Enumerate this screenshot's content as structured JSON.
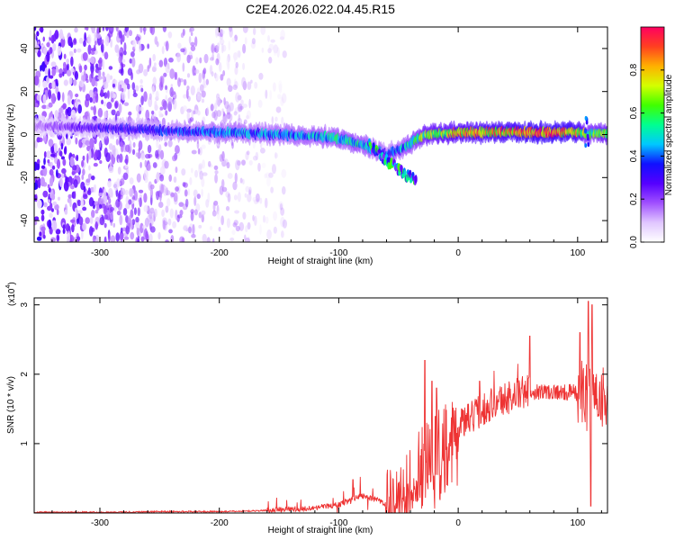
{
  "chart_data": [
    {
      "type": "heatmap",
      "title": "C2E4.2026.022.04.45.R15",
      "xlabel": "Height of straight line (km)",
      "ylabel": "Frequency (Hz)",
      "xlim": [
        -355,
        125
      ],
      "ylim": [
        -50,
        50
      ],
      "x_ticks": [
        -300,
        -200,
        -100,
        0,
        100
      ],
      "x_tick_labels": [
        "-300",
        "-200",
        "-100",
        "0",
        "100"
      ],
      "y_ticks": [
        -40,
        -20,
        0,
        20,
        40
      ],
      "y_tick_labels": [
        "-40",
        "-20",
        "0",
        "20",
        "40"
      ],
      "colorbar": {
        "label": "Normalized spectral amplitude",
        "range": [
          0,
          1
        ],
        "ticks": [
          0.0,
          0.2,
          0.4,
          0.6,
          0.8
        ],
        "tick_labels": [
          "0.0",
          "0.2",
          "0.4",
          "0.6",
          "0.8"
        ],
        "colormap": [
          "#ffffff",
          "#e0c6ff",
          "#a050ff",
          "#5500ff",
          "#1010ff",
          "#00c8ff",
          "#00ff90",
          "#40ff00",
          "#d4ff00",
          "#ffb000",
          "#ff4020",
          "#ff0060"
        ]
      },
      "ridge": {
        "x": [
          -355,
          -300,
          -250,
          -200,
          -150,
          -110,
          -90,
          -75,
          -60,
          -45,
          -35,
          -25,
          0,
          40,
          80,
          100,
          108,
          125
        ],
        "freq": [
          4,
          3,
          2,
          1,
          0,
          -1,
          -3,
          -6,
          -9,
          -6,
          -2,
          0,
          1,
          1,
          1,
          1,
          0,
          1
        ],
        "amplitude": [
          0.15,
          0.3,
          0.35,
          0.45,
          0.45,
          0.5,
          0.55,
          0.5,
          0.4,
          0.5,
          0.6,
          0.7,
          0.8,
          0.85,
          0.9,
          0.85,
          0.6,
          0.7
        ],
        "branch": {
          "x": [
            -75,
            -60,
            -45,
            -35
          ],
          "freq": [
            -5,
            -12,
            -18,
            -22
          ]
        }
      },
      "noise_region_x": [
        -355,
        -145
      ]
    },
    {
      "type": "line",
      "xlabel": "Height of straight line (km)",
      "ylabel": "SNR (10 * v/v)",
      "y_multiplier": "(x10",
      "y_multiplier_exp": "4",
      "y_multiplier_close": ")",
      "xlim": [
        -355,
        125
      ],
      "ylim": [
        0,
        3.1
      ],
      "x_ticks": [
        -300,
        -200,
        -100,
        0,
        100
      ],
      "x_tick_labels": [
        "-300",
        "-200",
        "-100",
        "0",
        "100"
      ],
      "y_ticks": [
        1,
        2,
        3
      ],
      "y_tick_labels": [
        "1",
        "2",
        "3"
      ],
      "line_color": "#ee3333",
      "baseline": {
        "x": [
          -355,
          -300,
          -250,
          -200,
          -170,
          -150,
          -130,
          -110,
          -100,
          -90,
          -80,
          -70,
          -60,
          -50,
          -45,
          -40,
          -35,
          -30,
          -25,
          -20,
          -15,
          -10,
          -5,
          0,
          10,
          20,
          30,
          40,
          50,
          60,
          70,
          80,
          90,
          95,
          100,
          105,
          108,
          112,
          118,
          125
        ],
        "y": [
          0.01,
          0.01,
          0.02,
          0.02,
          0.03,
          0.05,
          0.06,
          0.1,
          0.12,
          0.2,
          0.25,
          0.2,
          0.12,
          0.12,
          0.25,
          0.45,
          0.6,
          0.75,
          0.9,
          1.0,
          1.05,
          1.1,
          1.15,
          1.25,
          1.35,
          1.5,
          1.6,
          1.65,
          1.72,
          1.75,
          1.75,
          1.75,
          1.73,
          1.75,
          1.72,
          1.72,
          1.65,
          1.7,
          1.72,
          1.7
        ]
      },
      "spikes": {
        "x": [
          -152,
          -88,
          -82,
          -28,
          -22,
          -18,
          -12,
          -5,
          3,
          18,
          30,
          50,
          60,
          78,
          102,
          109,
          111,
          112
        ],
        "y": [
          0.22,
          0.48,
          0.52,
          2.2,
          1.9,
          1.8,
          1.5,
          1.6,
          1.5,
          1.9,
          2.05,
          2.15,
          2.55,
          1.8,
          2.6,
          3.05,
          0.1,
          3.0
        ]
      }
    }
  ]
}
